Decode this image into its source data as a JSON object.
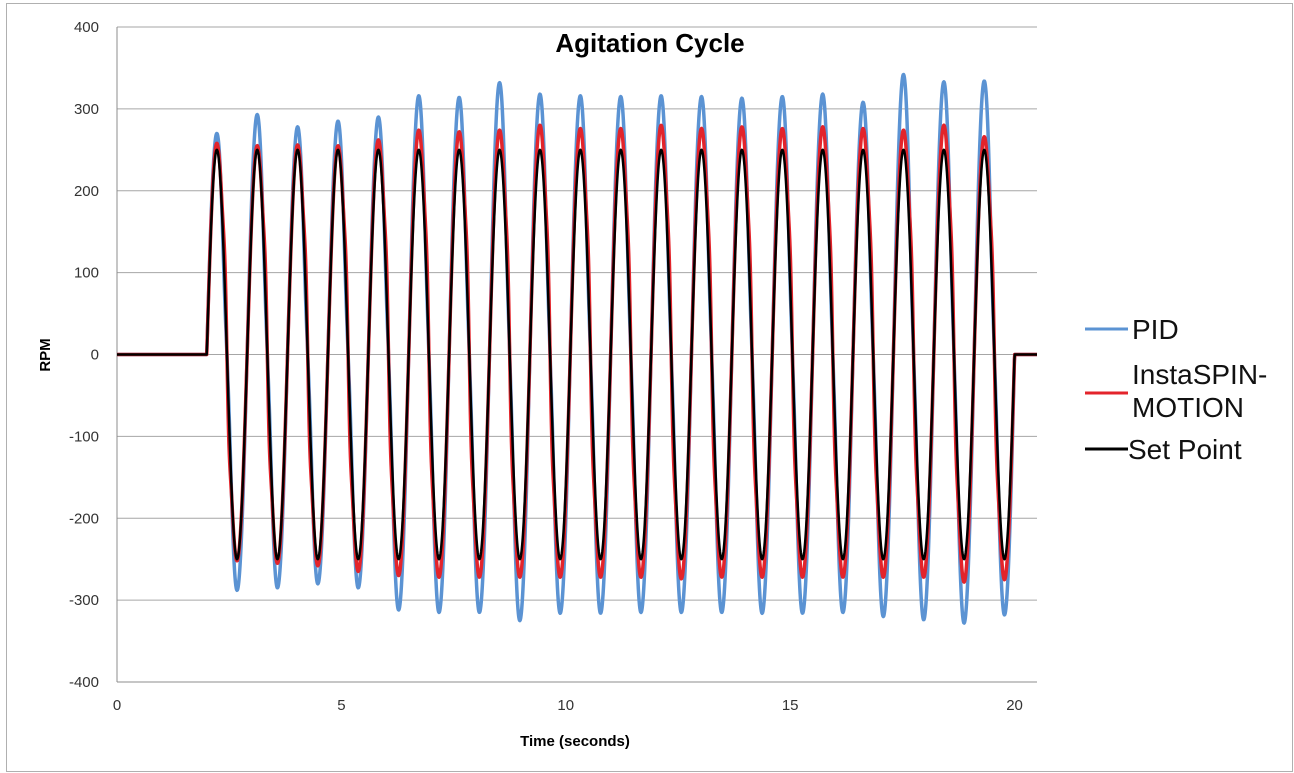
{
  "chart_data": {
    "type": "line",
    "title": "Agitation Cycle",
    "xlabel": "Time (seconds)",
    "ylabel": "RPM",
    "xlim": [
      0,
      20.5
    ],
    "ylim": [
      -400,
      400
    ],
    "x_ticks": [
      0,
      5,
      10,
      15,
      20
    ],
    "x_tick_labels": [
      "0",
      "5",
      "10",
      "15",
      "20"
    ],
    "y_ticks": [
      400,
      300,
      200,
      100,
      0,
      -100,
      -200,
      -300,
      -400
    ],
    "y_tick_labels": [
      "400",
      "300",
      "200",
      "100",
      "0",
      "-100",
      "-200",
      "-300",
      "-400"
    ],
    "grid": "horizontal",
    "legend_position": "right",
    "signal": {
      "start": 2.0,
      "period": 0.9,
      "amplitude": 250,
      "end_value": 0
    },
    "series": [
      {
        "name": "PID",
        "color": "#5b93d3",
        "peaks": [
          270,
          293,
          278,
          285,
          290,
          316,
          314,
          332,
          318,
          316,
          315,
          316,
          315,
          313,
          315,
          318,
          308,
          342,
          333,
          334
        ],
        "troughs": [
          -288,
          -285,
          -280,
          -285,
          -312,
          -315,
          -315,
          -325,
          -316,
          -316,
          -315,
          -315,
          -315,
          -316,
          -316,
          -315,
          -320,
          -324,
          -328,
          -318
        ]
      },
      {
        "name": "InstaSPIN-\nMOTION",
        "label_lines": [
          "InstaSPIN-",
          "MOTION"
        ],
        "color": "#e3242b",
        "peaks": [
          258,
          255,
          256,
          255,
          262,
          274,
          272,
          274,
          280,
          276,
          276,
          280,
          276,
          278,
          276,
          278,
          276,
          274,
          280,
          266
        ],
        "troughs": [
          -252,
          -255,
          -258,
          -265,
          -270,
          -272,
          -272,
          -272,
          -272,
          -272,
          -272,
          -274,
          -272,
          -272,
          -272,
          -272,
          -272,
          -272,
          -278,
          -275
        ]
      },
      {
        "name": "Set Point",
        "color": "#000000",
        "peaks": [
          250,
          250,
          250,
          250,
          250,
          250,
          250,
          250,
          250,
          250,
          250,
          250,
          250,
          250,
          250,
          250,
          250,
          250,
          250,
          250
        ],
        "troughs": [
          -250,
          -250,
          -250,
          -250,
          -250,
          -250,
          -250,
          -250,
          -250,
          -250,
          -250,
          -250,
          -250,
          -250,
          -250,
          -250,
          -250,
          -250,
          -250,
          -250
        ]
      }
    ]
  }
}
